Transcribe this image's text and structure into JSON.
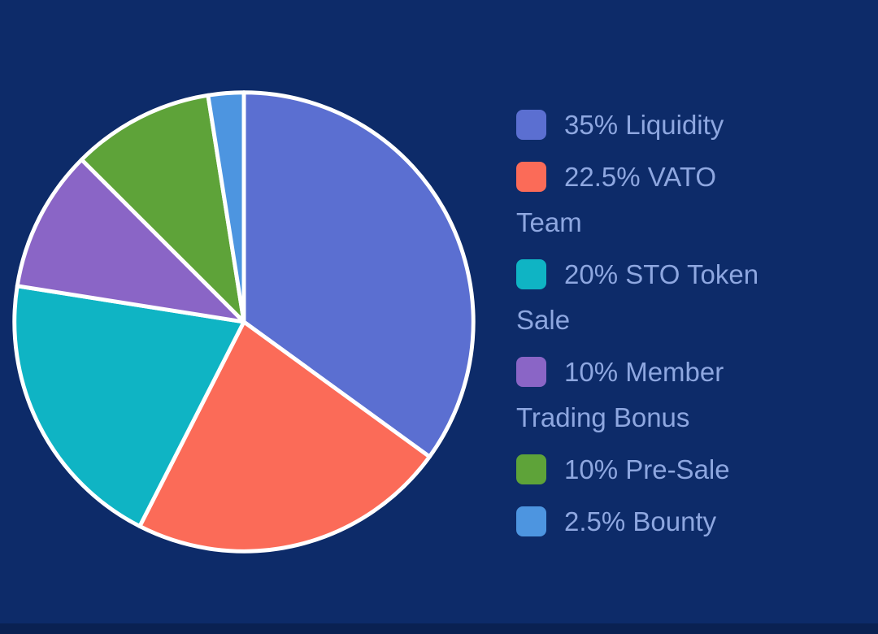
{
  "page": {
    "background_color": "#0d2b69",
    "bottom_strip_color": "#0a2152",
    "legend_text_color": "#8ea7e0"
  },
  "chart_data": {
    "type": "pie",
    "title": "",
    "legend_position": "right",
    "start_angle_deg": -90,
    "direction": "clockwise",
    "stroke_color": "#ffffff",
    "stroke_width": 5,
    "categories": [
      "Liquidity",
      "VATO Team",
      "STO Token Sale",
      "Member Trading Bonus",
      "Pre-Sale",
      "Bounty"
    ],
    "values": [
      35,
      22.5,
      20,
      10,
      10,
      2.5
    ],
    "slices": [
      {
        "label": "Liquidity",
        "value": 35,
        "legend_label": "35% Liquidity",
        "color": "#5b6fd1"
      },
      {
        "label": "VATO Team",
        "value": 22.5,
        "legend_label": "22.5% VATO Team",
        "color": "#fb6b58"
      },
      {
        "label": "STO Token Sale",
        "value": 20,
        "legend_label": "20% STO Token Sale",
        "color": "#0fb4c4"
      },
      {
        "label": "Member Trading Bonus",
        "value": 10,
        "legend_label": "10% Member Trading Bonus",
        "color": "#8a65c6"
      },
      {
        "label": "Pre-Sale",
        "value": 10,
        "legend_label": "10% Pre-Sale",
        "color": "#5ea339"
      },
      {
        "label": "Bounty",
        "value": 2.5,
        "legend_label": "2.5% Bounty",
        "color": "#4d95e0"
      }
    ]
  }
}
